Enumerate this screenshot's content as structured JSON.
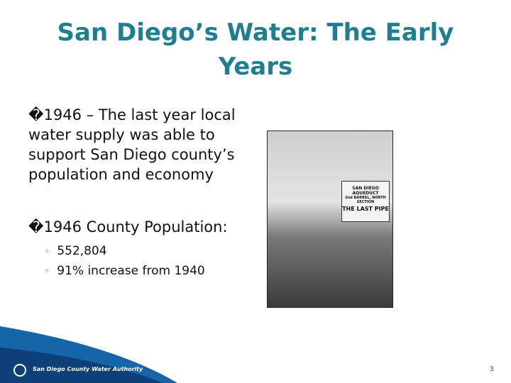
{
  "header": {
    "title": "San Diego’s Water: The Early Years"
  },
  "bullets": [
    {
      "text": "�1946 – The last year local water supply was able to support San Diego county’s population and economy"
    },
    {
      "text": "�1946 County Population:",
      "sub": [
        "552,804",
        "91% increase from 1940"
      ]
    }
  ],
  "photo": {
    "sign": [
      "SAN DIEGO AQUEDUCT",
      "2nd BARREL, NORTH SECTION",
      "THE LAST PIPE"
    ]
  },
  "footer": {
    "logo": "San Diego County Water Authority",
    "page": "3"
  }
}
